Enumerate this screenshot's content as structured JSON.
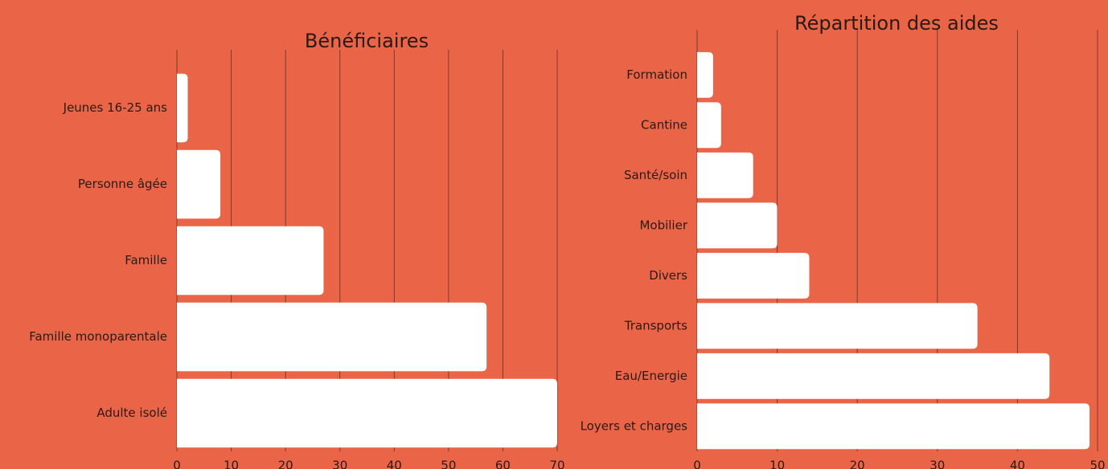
{
  "chart_data": [
    {
      "type": "barh",
      "title": "Bénéficiaires",
      "categories": [
        "Jeunes 16-25 ans",
        "Personne âgée",
        "Famille",
        "Famille monoparentale",
        "Adulte isolé"
      ],
      "values": [
        2,
        8,
        27,
        57,
        70
      ],
      "color": "#ffffff",
      "xlim": [
        0,
        70
      ],
      "xticks": [
        0,
        10,
        20,
        30,
        40,
        50,
        60,
        70
      ],
      "grid": true
    },
    {
      "type": "barh",
      "title": "Répartition des aides",
      "categories": [
        "Formation",
        "Cantine",
        "Santé/soin",
        "Mobilier",
        "Divers",
        "Transports",
        "Eau/Energie",
        "Loyers et charges"
      ],
      "values": [
        2,
        3,
        7,
        10,
        14,
        35,
        44,
        49
      ],
      "color": "#ffffff",
      "xlim": [
        0,
        50
      ],
      "xticks": [
        0,
        10,
        20,
        30,
        40,
        50
      ],
      "grid": true
    }
  ]
}
